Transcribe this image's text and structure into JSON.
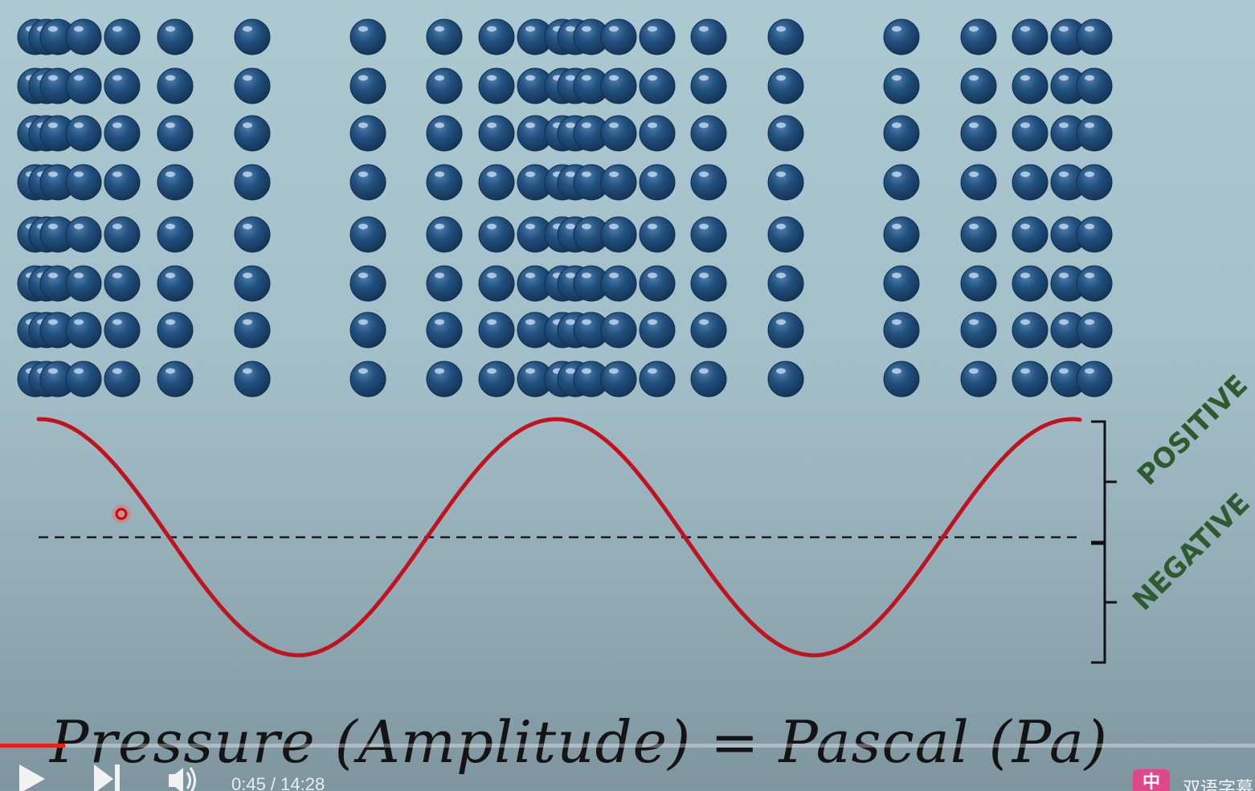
{
  "particle_rows": [
    [
      0.07,
      0.097,
      0.13,
      0.17,
      0.5,
      0.7,
      0.95,
      1.2,
      1.35,
      1.45,
      1.55,
      1.65,
      1.75,
      1.85,
      1.95,
      2.05,
      2.15,
      2.25,
      2.35
    ],
    [
      0.07,
      0.097,
      0.13,
      0.17,
      0.5,
      0.7,
      0.95,
      1.2,
      1.35,
      1.45,
      1.55,
      1.65,
      1.75,
      1.85,
      1.95,
      2.05,
      2.15,
      2.25,
      2.35
    ]
  ],
  "particle_columns_x": [
    44,
    58,
    72,
    104,
    152,
    218,
    314,
    458,
    553,
    618,
    666,
    700,
    716,
    736,
    770,
    818,
    882,
    978,
    1122,
    1218,
    1282,
    1330,
    1362
  ],
  "particle_row_count": 8,
  "particle_color": "#1e4d7a",
  "wave": {
    "color": "#c1121f",
    "baseline_style": "dashed",
    "phase_label_positive": "POSITIVE",
    "phase_label_negative": "NEGATIVE",
    "label_color": "#2e5a2e"
  },
  "formula": "Pressure (Amplitude) = Pascal (Pa)",
  "player": {
    "progress_fraction": 0.052,
    "time_current": "0:45",
    "time_total": "14:28",
    "time_text": "0:45 / 14:28",
    "play_icon": "play-icon",
    "next_icon": "next-icon",
    "volume_icon": "volume-icon",
    "extension_badge": "中",
    "extension_label": "双语字幕",
    "accent": "#e62117"
  }
}
